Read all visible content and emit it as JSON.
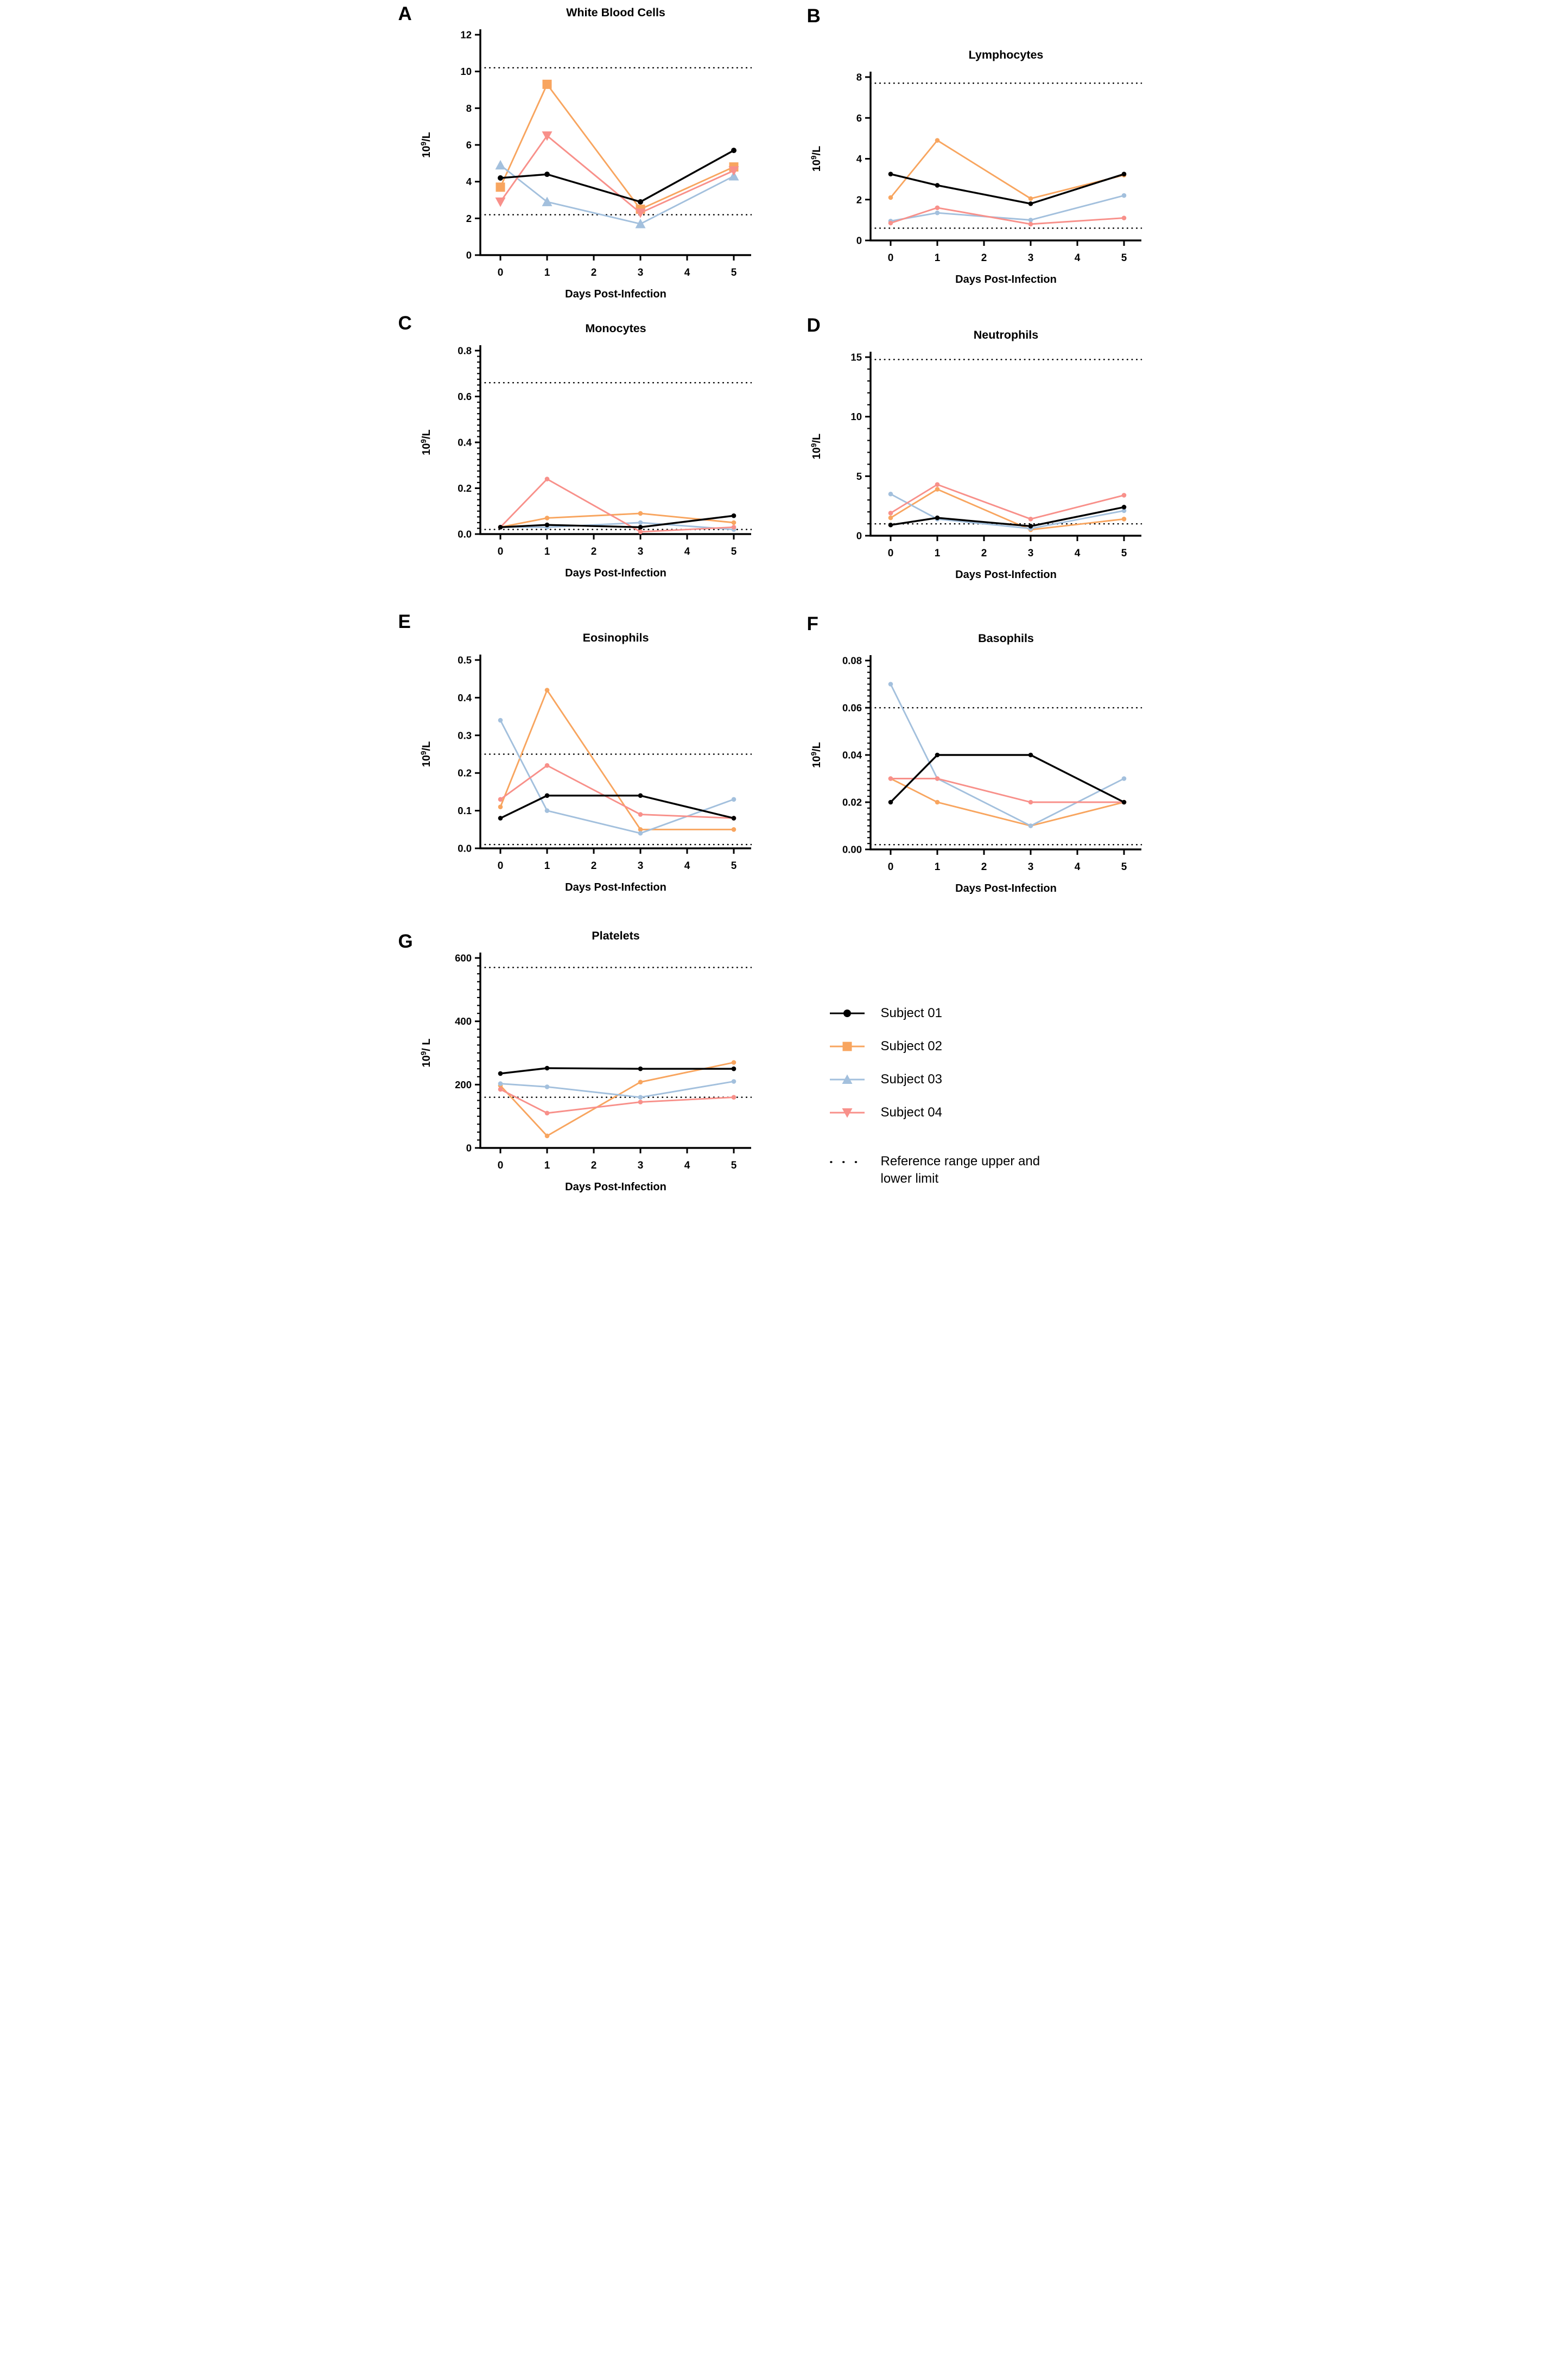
{
  "figure": {
    "xlabel": "Days Post-Infection",
    "legend": {
      "items": [
        {
          "label": "Subject 01",
          "color": "#000000",
          "marker": "circle"
        },
        {
          "label": "Subject 02",
          "color": "#F8A55F",
          "marker": "square"
        },
        {
          "label": "Subject 03",
          "color": "#A3C0DD",
          "marker": "triangle-up"
        },
        {
          "label": "Subject 04",
          "color": "#F8908A",
          "marker": "triangle-down"
        }
      ],
      "reference_label": "Reference range upper and lower limit"
    }
  },
  "chart_data": [
    {
      "panel": "A",
      "type": "line",
      "title": "White Blood Cells",
      "ylabel": {
        "prefix": "10",
        "exp": "9",
        "suffix": "/L"
      },
      "xlabel": "Days Post-Infection",
      "x": [
        0,
        1,
        3,
        5
      ],
      "xticks": [
        0,
        1,
        2,
        3,
        4,
        5
      ],
      "xtick_labels": [
        "0",
        "1",
        "2",
        "3",
        "4",
        "5"
      ],
      "ylim": [
        0,
        12
      ],
      "yticks": [
        0,
        2,
        4,
        6,
        8,
        10,
        12
      ],
      "ytick_labels": [
        "0",
        "2",
        "4",
        "6",
        "8",
        "10",
        "12"
      ],
      "yminor_step": null,
      "reference_upper": 10.2,
      "reference_lower": 2.2,
      "big_markers": true,
      "series": [
        {
          "name": "Subject 01",
          "values": [
            4.2,
            4.4,
            2.9,
            5.7
          ]
        },
        {
          "name": "Subject 02",
          "values": [
            3.7,
            9.3,
            2.5,
            4.8
          ]
        },
        {
          "name": "Subject 03",
          "values": [
            4.9,
            2.9,
            1.7,
            4.3
          ]
        },
        {
          "name": "Subject 04",
          "values": [
            2.9,
            6.5,
            2.3,
            4.6
          ]
        }
      ]
    },
    {
      "panel": "B",
      "type": "line",
      "title": "Lymphocytes",
      "ylabel": {
        "prefix": "10",
        "exp": "9",
        "suffix": "/L"
      },
      "xlabel": "Days Post-Infection",
      "x": [
        0,
        1,
        3,
        5
      ],
      "xticks": [
        0,
        1,
        2,
        3,
        4,
        5
      ],
      "xtick_labels": [
        "0",
        "1",
        "2",
        "3",
        "4",
        "5"
      ],
      "ylim": [
        0,
        8
      ],
      "yticks": [
        0,
        2,
        4,
        6,
        8
      ],
      "ytick_labels": [
        "0",
        "2",
        "4",
        "6",
        "8"
      ],
      "yminor_step": null,
      "reference_upper": 7.7,
      "reference_lower": 0.6,
      "big_markers": false,
      "series": [
        {
          "name": "Subject 01",
          "values": [
            3.25,
            2.7,
            1.8,
            3.25
          ]
        },
        {
          "name": "Subject 02",
          "values": [
            2.1,
            4.9,
            2.05,
            3.2
          ]
        },
        {
          "name": "Subject 03",
          "values": [
            0.95,
            1.35,
            1.0,
            2.2
          ]
        },
        {
          "name": "Subject 04",
          "values": [
            0.85,
            1.6,
            0.8,
            1.1
          ]
        }
      ]
    },
    {
      "panel": "C",
      "type": "line",
      "title": "Monocytes",
      "ylabel": {
        "prefix": "10",
        "exp": "9",
        "suffix": "/L"
      },
      "xlabel": "Days Post-Infection",
      "x": [
        0,
        1,
        3,
        5
      ],
      "xticks": [
        0,
        1,
        2,
        3,
        4,
        5
      ],
      "xtick_labels": [
        "0",
        "1",
        "2",
        "3",
        "4",
        "5"
      ],
      "ylim": [
        0,
        0.8
      ],
      "yticks": [
        0,
        0.2,
        0.4,
        0.6,
        0.8
      ],
      "ytick_labels": [
        "0.0",
        "0.2",
        "0.4",
        "0.6",
        "0.8"
      ],
      "yminor_step": 0.025,
      "reference_upper": 0.66,
      "reference_lower": 0.02,
      "big_markers": false,
      "series": [
        {
          "name": "Subject 01",
          "values": [
            0.03,
            0.04,
            0.03,
            0.08
          ]
        },
        {
          "name": "Subject 02",
          "values": [
            0.03,
            0.07,
            0.09,
            0.05
          ]
        },
        {
          "name": "Subject 03",
          "values": [
            0.03,
            0.03,
            0.05,
            0.02
          ]
        },
        {
          "name": "Subject 04",
          "values": [
            0.03,
            0.24,
            0.01,
            0.03
          ]
        }
      ]
    },
    {
      "panel": "D",
      "type": "line",
      "title": "Neutrophils",
      "ylabel": {
        "prefix": "10",
        "exp": "9",
        "suffix": "/L"
      },
      "xlabel": "Days Post-Infection",
      "x": [
        0,
        1,
        3,
        5
      ],
      "xticks": [
        0,
        1,
        2,
        3,
        4,
        5
      ],
      "xtick_labels": [
        "0",
        "1",
        "2",
        "3",
        "4",
        "5"
      ],
      "ylim": [
        0,
        15
      ],
      "yticks": [
        0,
        5,
        10,
        15
      ],
      "ytick_labels": [
        "0",
        "5",
        "10",
        "15"
      ],
      "yminor_step": 1,
      "reference_upper": 14.8,
      "reference_lower": 1.0,
      "big_markers": false,
      "series": [
        {
          "name": "Subject 01",
          "values": [
            0.9,
            1.5,
            0.8,
            2.4
          ]
        },
        {
          "name": "Subject 02",
          "values": [
            1.5,
            3.9,
            0.5,
            1.4
          ]
        },
        {
          "name": "Subject 03",
          "values": [
            3.5,
            1.4,
            0.6,
            2.1
          ]
        },
        {
          "name": "Subject 04",
          "values": [
            1.9,
            4.3,
            1.4,
            3.4
          ]
        }
      ]
    },
    {
      "panel": "E",
      "type": "line",
      "title": "Eosinophils",
      "ylabel": {
        "prefix": "10",
        "exp": "9",
        "suffix": "/L"
      },
      "xlabel": "Days Post-Infection",
      "x": [
        0,
        1,
        3,
        5
      ],
      "xticks": [
        0,
        1,
        2,
        3,
        4,
        5
      ],
      "xtick_labels": [
        "0",
        "1",
        "2",
        "3",
        "4",
        "5"
      ],
      "ylim": [
        0,
        0.5
      ],
      "yticks": [
        0,
        0.1,
        0.2,
        0.3,
        0.4,
        0.5
      ],
      "ytick_labels": [
        "0.0",
        "0.1",
        "0.2",
        "0.3",
        "0.4",
        "0.5"
      ],
      "yminor_step": null,
      "reference_upper": 0.25,
      "reference_lower": 0.01,
      "big_markers": false,
      "series": [
        {
          "name": "Subject 01",
          "values": [
            0.08,
            0.14,
            0.14,
            0.08
          ]
        },
        {
          "name": "Subject 02",
          "values": [
            0.11,
            0.42,
            0.05,
            0.05
          ]
        },
        {
          "name": "Subject 03",
          "values": [
            0.34,
            0.1,
            0.04,
            0.13
          ]
        },
        {
          "name": "Subject 04",
          "values": [
            0.13,
            0.22,
            0.09,
            0.08
          ]
        }
      ]
    },
    {
      "panel": "F",
      "type": "line",
      "title": "Basophils",
      "ylabel": {
        "prefix": "10",
        "exp": "9",
        "suffix": "/L"
      },
      "xlabel": "Days Post-Infection",
      "x": [
        0,
        1,
        3,
        5
      ],
      "xticks": [
        0,
        1,
        2,
        3,
        4,
        5
      ],
      "xtick_labels": [
        "0",
        "1",
        "2",
        "3",
        "4",
        "5"
      ],
      "ylim": [
        0,
        0.08
      ],
      "yticks": [
        0,
        0.02,
        0.04,
        0.06,
        0.08
      ],
      "ytick_labels": [
        "0.00",
        "0.02",
        "0.04",
        "0.06",
        "0.08"
      ],
      "yminor_step": 0.0025,
      "reference_upper": 0.06,
      "reference_lower": 0.002,
      "big_markers": false,
      "series": [
        {
          "name": "Subject 01",
          "values": [
            0.02,
            0.04,
            0.04,
            0.02
          ]
        },
        {
          "name": "Subject 02",
          "values": [
            0.03,
            0.02,
            0.01,
            0.02
          ]
        },
        {
          "name": "Subject 03",
          "values": [
            0.07,
            0.03,
            0.01,
            0.03
          ]
        },
        {
          "name": "Subject 04",
          "values": [
            0.03,
            0.03,
            0.02,
            0.02
          ]
        }
      ]
    },
    {
      "panel": "G",
      "type": "line",
      "title": "Platelets",
      "ylabel": {
        "prefix": "10",
        "exp": "9",
        "suffix": "/ L"
      },
      "xlabel": "Days Post-Infection",
      "x": [
        0,
        1,
        3,
        5
      ],
      "xticks": [
        0,
        1,
        2,
        3,
        4,
        5
      ],
      "xtick_labels": [
        "0",
        "1",
        "2",
        "3",
        "4",
        "5"
      ],
      "ylim": [
        0,
        600
      ],
      "yticks": [
        0,
        200,
        400,
        600
      ],
      "ytick_labels": [
        "0",
        "200",
        "400",
        "600"
      ],
      "yminor_step": 25,
      "reference_upper": 570,
      "reference_lower": 160,
      "big_markers": false,
      "series": [
        {
          "name": "Subject 01",
          "values": [
            235,
            252,
            250,
            250
          ]
        },
        {
          "name": "Subject 02",
          "values": [
            197,
            38,
            208,
            270
          ]
        },
        {
          "name": "Subject 03",
          "values": [
            203,
            193,
            160,
            210
          ]
        },
        {
          "name": "Subject 04",
          "values": [
            185,
            110,
            145,
            160
          ]
        }
      ]
    }
  ]
}
